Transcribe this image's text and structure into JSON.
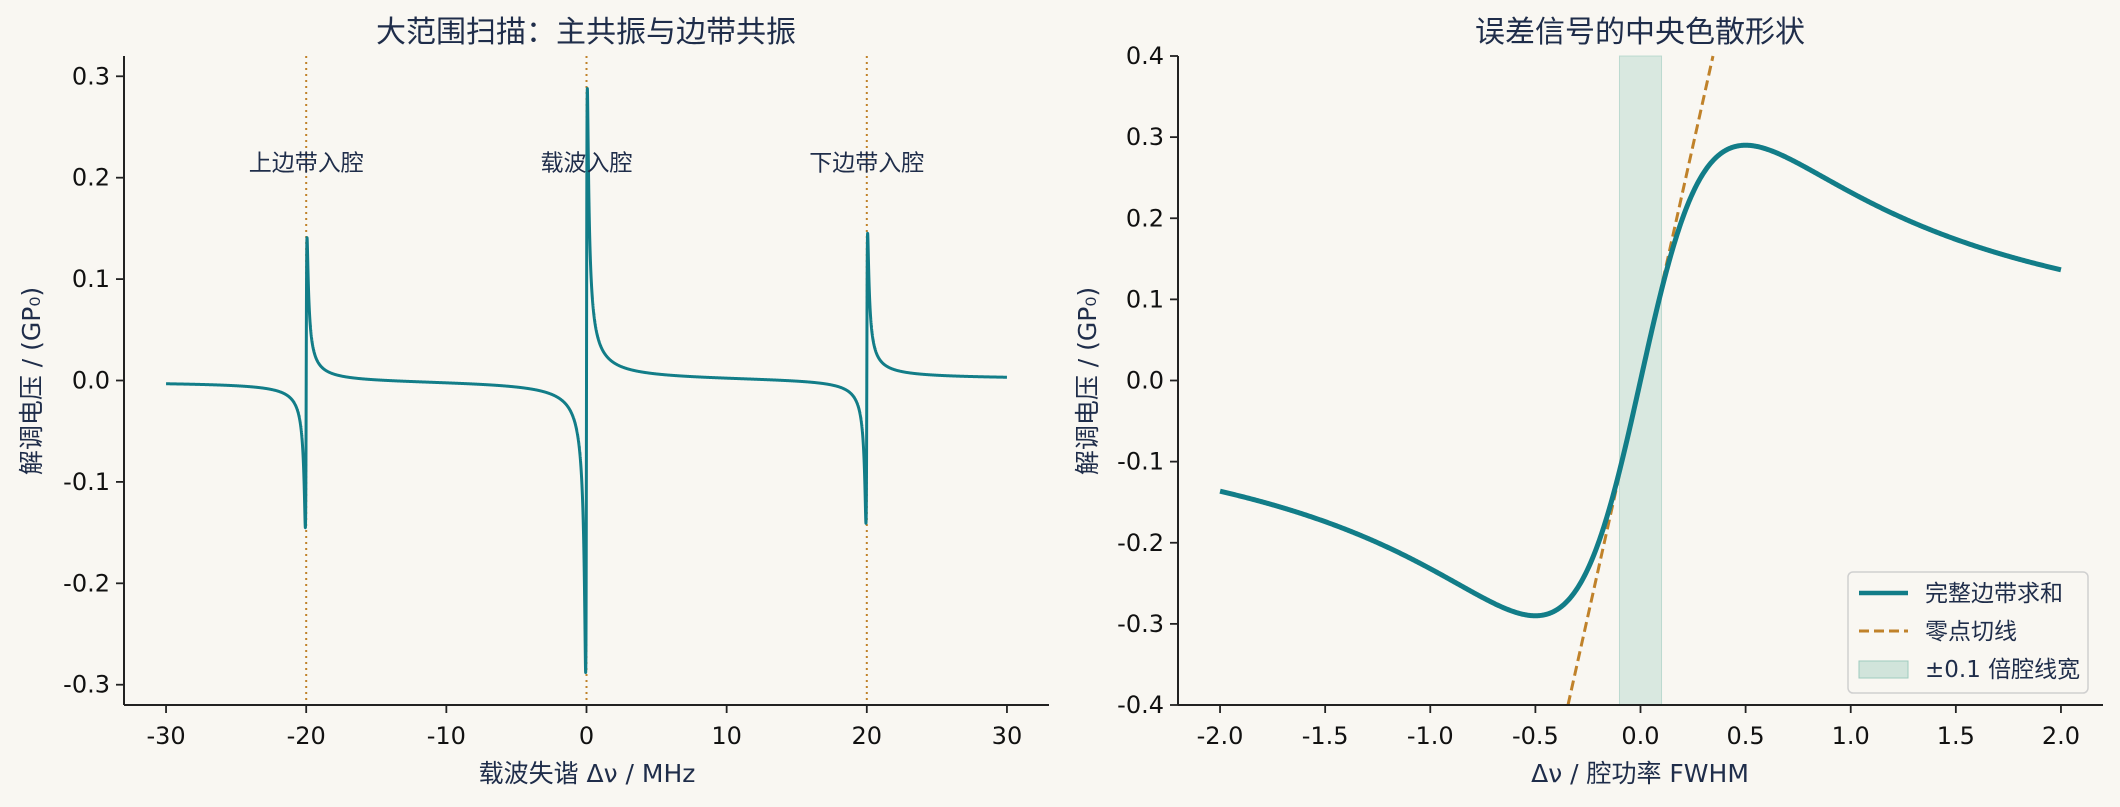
{
  "colors": {
    "background": "#f9f7f2",
    "signal": "#127d88",
    "tangent": "#c0822a",
    "shade": "#9fcbbf",
    "text": "#1f2d4a"
  },
  "chart_data": [
    {
      "type": "line",
      "title": "大范围扫描：主共振与边带共振",
      "xlabel": "载波失谐 Δν / MHz",
      "ylabel": "解调电压 / (GP₀)",
      "xlim": [
        -33,
        33
      ],
      "ylim": [
        -0.32,
        0.32
      ],
      "xticks": [
        -30,
        -20,
        -10,
        0,
        10,
        20,
        30
      ],
      "xtick_labels": [
        "-30",
        "-20",
        "-10",
        "0",
        "10",
        "20",
        "30"
      ],
      "yticks": [
        -0.3,
        -0.2,
        -0.1,
        0.0,
        0.1,
        0.2,
        0.3
      ],
      "ytick_labels": [
        "-0.3",
        "-0.2",
        "-0.1",
        "0.0",
        "0.1",
        "0.2",
        "0.3"
      ],
      "grid": false,
      "resonances": [
        {
          "x": -20,
          "amplitude": 0.143
        },
        {
          "x": 0,
          "amplitude": 0.288
        },
        {
          "x": 20,
          "amplitude": 0.143
        }
      ],
      "x_range": [
        -30,
        30
      ],
      "vlines": [
        -20,
        0,
        20
      ],
      "annotations": [
        {
          "text": "上边带入腔",
          "x": -20,
          "y": 0.215
        },
        {
          "text": "载波入腔",
          "x": 0,
          "y": 0.215
        },
        {
          "text": "下边带入腔",
          "x": 20,
          "y": 0.215
        }
      ]
    },
    {
      "type": "line",
      "title": "误差信号的中央色散形状",
      "xlabel": "Δν / 腔功率 FWHM",
      "ylabel": "解调电压 / (GP₀)",
      "xlim": [
        -2.2,
        2.2
      ],
      "ylim": [
        -0.4,
        0.4
      ],
      "xticks": [
        -2.0,
        -1.5,
        -1.0,
        -0.5,
        0.0,
        0.5,
        1.0,
        1.5,
        2.0
      ],
      "xtick_labels": [
        "-2.0",
        "-1.5",
        "-1.0",
        "-0.5",
        "0.0",
        "0.5",
        "1.0",
        "1.5",
        "2.0"
      ],
      "yticks": [
        -0.4,
        -0.3,
        -0.2,
        -0.1,
        0.0,
        0.1,
        0.2,
        0.3,
        0.4
      ],
      "ytick_labels": [
        "-0.4",
        "-0.3",
        "-0.2",
        "-0.1",
        "0.0",
        "0.1",
        "0.2",
        "0.3",
        "0.4"
      ],
      "grid": false,
      "x_range": [
        -2.0,
        2.0
      ],
      "peak": {
        "x": 0.5,
        "y": 0.29
      },
      "trough": {
        "x": -0.5,
        "y": -0.29
      },
      "endpoints": [
        [
          -2.0,
          -0.136
        ],
        [
          2.0,
          0.136
        ]
      ],
      "tangent_slope": 1.16,
      "shaded_band": [
        -0.1,
        0.1
      ],
      "legend_position": "lower-right",
      "series": [
        {
          "name": "完整边带求和",
          "style": "solid"
        },
        {
          "name": "零点切线",
          "style": "dashed"
        },
        {
          "name": "±0.1 倍腔线宽",
          "style": "band"
        }
      ]
    }
  ]
}
